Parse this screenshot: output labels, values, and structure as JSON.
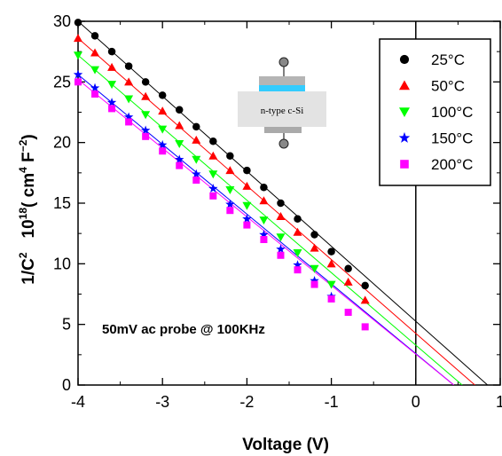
{
  "chart_data": {
    "type": "scatter",
    "xlabel": "Voltage (V)",
    "ylabel": {
      "main": "1/C",
      "main_sup": "2",
      "factor": "10",
      "factor_sup": "18",
      "unit_open": "( cm",
      "unit_sup1": "4",
      "unit_mid": " F",
      "unit_sup2": "−2",
      "unit_close": ")"
    },
    "xlim": [
      -4,
      1
    ],
    "ylim": [
      0,
      30
    ],
    "x_ticks": [
      -4,
      -3,
      -2,
      -1,
      0,
      1
    ],
    "x_tick_labels": [
      "-4",
      "-3",
      "-2",
      "-1",
      "0",
      "1"
    ],
    "y_ticks": [
      0,
      5,
      10,
      15,
      20,
      25,
      30
    ],
    "y_tick_labels": [
      "0",
      "5",
      "10",
      "15",
      "20",
      "25",
      "30"
    ],
    "reference_line_x": 0,
    "annotation": "50mV ac probe @ 100KHz",
    "inset_label": "n-type c-Si",
    "legend_position": "top-right",
    "series": [
      {
        "name": "25°C",
        "marker": "circle",
        "color": "#000000",
        "x": [
          -4.0,
          -3.8,
          -3.6,
          -3.4,
          -3.2,
          -3.0,
          -2.8,
          -2.6,
          -2.4,
          -2.2,
          -2.0,
          -1.8,
          -1.6,
          -1.4,
          -1.2,
          -1.0,
          -0.8,
          -0.6
        ],
        "y": [
          29.9,
          28.8,
          27.5,
          26.3,
          25.0,
          23.9,
          22.7,
          21.3,
          20.1,
          18.9,
          17.7,
          16.3,
          15.0,
          13.7,
          12.4,
          11.0,
          9.6,
          8.2
        ],
        "fit": {
          "x0": -4.0,
          "y0": 30.0,
          "x1": 0.85,
          "y1": 0.0
        }
      },
      {
        "name": "50°C",
        "marker": "triangle-up",
        "color": "#ff0000",
        "x": [
          -4.0,
          -3.8,
          -3.6,
          -3.4,
          -3.2,
          -3.0,
          -2.8,
          -2.6,
          -2.4,
          -2.2,
          -2.0,
          -1.8,
          -1.6,
          -1.4,
          -1.2,
          -1.0,
          -0.8,
          -0.6
        ],
        "y": [
          28.6,
          27.4,
          26.2,
          25.0,
          23.8,
          22.6,
          21.4,
          20.2,
          18.9,
          17.7,
          16.4,
          15.2,
          13.9,
          12.6,
          11.3,
          10.0,
          8.5,
          7.0
        ],
        "fit": {
          "x0": -4.0,
          "y0": 28.6,
          "x1": 0.7,
          "y1": 0.0
        }
      },
      {
        "name": "100°C",
        "marker": "triangle-down",
        "color": "#00ff00",
        "x": [
          -4.0,
          -3.8,
          -3.6,
          -3.4,
          -3.2,
          -3.0,
          -2.8,
          -2.6,
          -2.4,
          -2.2,
          -2.0,
          -1.8,
          -1.6,
          -1.4,
          -1.2,
          -1.0
        ],
        "y": [
          27.2,
          26.0,
          24.8,
          23.6,
          22.3,
          21.1,
          19.9,
          18.6,
          17.4,
          16.1,
          14.8,
          13.6,
          12.2,
          10.9,
          9.6,
          8.3
        ],
        "fit": {
          "x0": -4.0,
          "y0": 27.2,
          "x1": 0.55,
          "y1": 0.0
        }
      },
      {
        "name": "150°C",
        "marker": "star",
        "color": "#0000ff",
        "x": [
          -4.0,
          -3.8,
          -3.6,
          -3.4,
          -3.2,
          -3.0,
          -2.8,
          -2.6,
          -2.4,
          -2.2,
          -2.0,
          -1.8,
          -1.6,
          -1.4,
          -1.2,
          -1.0
        ],
        "y": [
          25.6,
          24.5,
          23.3,
          22.1,
          21.0,
          19.8,
          18.6,
          17.4,
          16.2,
          14.9,
          13.7,
          12.4,
          11.2,
          9.9,
          8.6,
          7.3
        ],
        "fit": {
          "x0": -4.0,
          "y0": 25.6,
          "x1": 0.45,
          "y1": 0.0
        }
      },
      {
        "name": "200°C",
        "marker": "square",
        "color": "#ff00ff",
        "x": [
          -4.0,
          -3.8,
          -3.6,
          -3.4,
          -3.2,
          -3.0,
          -2.8,
          -2.6,
          -2.4,
          -2.2,
          -2.0,
          -1.8,
          -1.6,
          -1.4,
          -1.2,
          -1.0,
          -0.8,
          -0.6
        ],
        "y": [
          25.0,
          24.0,
          22.8,
          21.7,
          20.5,
          19.3,
          18.1,
          16.9,
          15.6,
          14.4,
          13.2,
          12.0,
          10.7,
          9.5,
          8.3,
          7.1,
          6.0,
          4.8
        ],
        "fit": {
          "x0": -4.0,
          "y0": 25.2,
          "x1": 0.45,
          "y1": 0.0
        }
      }
    ]
  }
}
